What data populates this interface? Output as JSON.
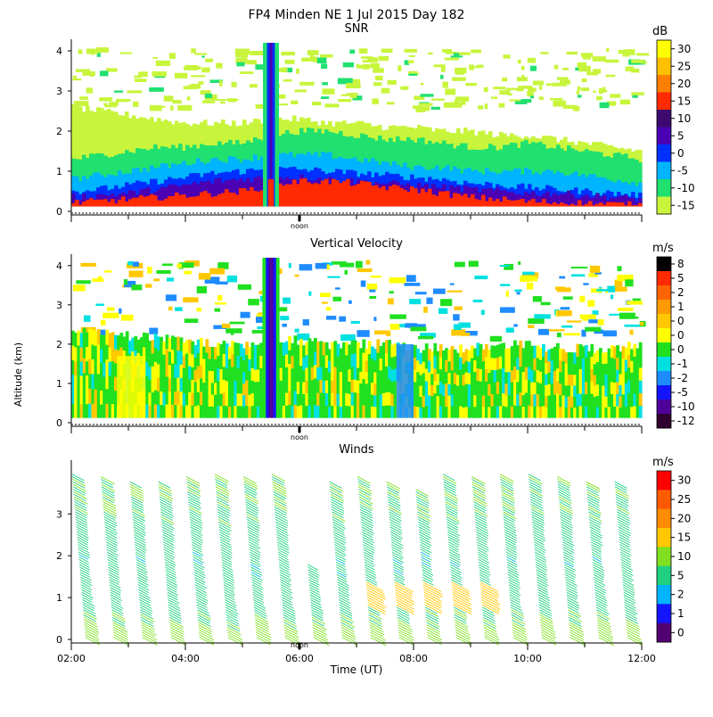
{
  "figure_title": "FP4 Minden NE   1 Jul 2015 Day 182",
  "shared": {
    "y_label": "Altitude (km)",
    "x_label": "Time (UT)",
    "x_ticks": [
      "02:00",
      "04:00",
      "06:00",
      "08:00",
      "10:00",
      "12:00"
    ],
    "noon_label": "noon",
    "noon_time": 6.0
  },
  "chart_data": [
    {
      "type": "heatmap",
      "title": "SNR",
      "units": "dB",
      "xlabel": "Time (UT)",
      "ylabel": "Altitude (km)",
      "xlim": [
        2,
        12
      ],
      "ylim": [
        0,
        4.2
      ],
      "y_ticks": [
        "0",
        "1",
        "2",
        "3",
        "4"
      ],
      "colorbar": {
        "labels": [
          "30",
          "25",
          "20",
          "15",
          "10",
          "5",
          "0",
          "-5",
          "-10",
          "-15"
        ],
        "colors": [
          "#ffff00",
          "#ffc000",
          "#ff8000",
          "#ff2a00",
          "#3c0a6e",
          "#4b00b4",
          "#0030ff",
          "#00b4ff",
          "#20e070",
          "#c8f53c"
        ]
      },
      "layers": [
        {
          "value_db": -15,
          "color": "#c8f53c",
          "top_km": [
            2.6,
            2.5,
            2.4,
            2.3,
            2.2,
            2.2,
            2.2,
            2.3,
            2.3,
            2.2,
            2.2,
            2.1,
            2.1,
            2.0,
            2.0,
            1.9,
            1.9,
            1.8,
            1.7,
            1.6,
            1.5
          ]
        },
        {
          "value_db": -10,
          "color": "#20e070",
          "top_km": [
            1.3,
            1.4,
            1.5,
            1.6,
            1.6,
            1.7,
            1.7,
            1.9,
            2.0,
            2.0,
            1.9,
            1.8,
            1.8,
            1.7,
            1.6,
            1.6,
            1.7,
            1.6,
            1.5,
            1.4,
            1.3
          ]
        },
        {
          "value_db": -5,
          "color": "#00b4ff",
          "top_km": [
            0.8,
            0.9,
            1.0,
            1.1,
            1.2,
            1.3,
            1.3,
            1.4,
            1.4,
            1.4,
            1.3,
            1.2,
            1.1,
            1.1,
            1.0,
            1.0,
            1.0,
            1.0,
            0.9,
            0.8,
            0.7
          ]
        },
        {
          "value_db": 0,
          "color": "#0030ff",
          "top_km": [
            0.5,
            0.55,
            0.65,
            0.75,
            0.85,
            0.95,
            1.0,
            1.05,
            1.05,
            1.0,
            0.95,
            0.9,
            0.85,
            0.8,
            0.7,
            0.65,
            0.6,
            0.55,
            0.5,
            0.45,
            0.4
          ]
        },
        {
          "value_db": 5,
          "color": "#4b00b4",
          "top_km": [
            0.35,
            0.4,
            0.45,
            0.55,
            0.65,
            0.75,
            0.8,
            0.85,
            0.85,
            0.8,
            0.75,
            0.7,
            0.65,
            0.6,
            0.55,
            0.5,
            0.45,
            0.45,
            0.4,
            0.35,
            0.3
          ]
        },
        {
          "value_db": 15,
          "color": "#ff2a00",
          "top_km": [
            0.22,
            0.25,
            0.3,
            0.35,
            0.4,
            0.45,
            0.5,
            0.65,
            0.75,
            0.75,
            0.7,
            0.6,
            0.55,
            0.45,
            0.35,
            0.3,
            0.25,
            0.22,
            0.2,
            0.18,
            0.15
          ]
        }
      ],
      "scattered_top_echo_km": [
        2.6,
        4.1
      ],
      "bright_column_time": 5.5
    },
    {
      "type": "heatmap",
      "title": "Vertical Velocity",
      "units": "m/s",
      "xlabel": "Time (UT)",
      "ylabel": "Altitude (km)",
      "xlim": [
        2,
        12
      ],
      "ylim": [
        0,
        4.2
      ],
      "y_ticks": [
        "0",
        "1",
        "2",
        "3",
        "4"
      ],
      "colorbar": {
        "labels": [
          "8",
          "5",
          "2",
          "1",
          "0",
          "0",
          "0",
          "-1",
          "-2",
          "-5",
          "-10",
          "-12"
        ],
        "colors": [
          "#000000",
          "#ff2a00",
          "#ff6400",
          "#ff9a00",
          "#ffc800",
          "#ffff00",
          "#20e020",
          "#00e0e0",
          "#1e8cff",
          "#1414ff",
          "#50009a",
          "#300030"
        ]
      },
      "top_km": [
        2.4,
        2.3,
        2.2,
        2.2,
        2.1,
        2.0,
        2.0,
        2.1,
        2.1,
        2.0,
        2.0,
        2.0,
        1.9,
        1.9,
        1.9,
        2.0,
        2.0,
        1.9,
        1.9,
        1.9,
        2.0
      ],
      "updraft_region": {
        "t_start": 2.8,
        "t_end": 3.3,
        "top_km": 1.7
      },
      "downdraft_column_time": 5.5,
      "negative_patch": {
        "t_start": 7.7,
        "t_end": 8.0,
        "top_km": 2.0
      }
    },
    {
      "type": "wind_barbs",
      "title": "Winds",
      "units": "m/s",
      "xlabel": "Time (UT)",
      "ylabel": "Altitude (km)",
      "xlim": [
        2,
        12
      ],
      "ylim": [
        0,
        4.2
      ],
      "y_ticks": [
        "0",
        "1",
        "2",
        "3"
      ],
      "colorbar": {
        "labels": [
          "30",
          "25",
          "20",
          "15",
          "10",
          "5",
          "2",
          "1",
          "0"
        ],
        "colors": [
          "#ff0000",
          "#ff5a00",
          "#ff8c00",
          "#ffc800",
          "#80e020",
          "#20d080",
          "#00b4ff",
          "#1414ff",
          "#500070"
        ]
      },
      "profile_times": [
        2.0,
        2.5,
        3.0,
        3.5,
        4.0,
        4.5,
        5.0,
        5.5,
        6.0,
        6.5,
        7.0,
        7.5,
        8.0,
        8.5,
        9.0,
        9.5,
        10.0,
        10.5,
        11.0,
        11.5
      ],
      "profile_tops_km": [
        4.0,
        3.9,
        3.8,
        3.8,
        3.9,
        4.0,
        3.9,
        4.0,
        1.8,
        3.8,
        3.9,
        3.8,
        3.6,
        4.0,
        3.9,
        4.0,
        4.0,
        3.9,
        3.8,
        3.8
      ],
      "speed_profile_mps": [
        {
          "alt_km": 0.2,
          "speed": 12
        },
        {
          "alt_km": 1.0,
          "speed": 7
        },
        {
          "alt_km": 2.0,
          "speed": 6
        },
        {
          "alt_km": 3.0,
          "speed": 9
        },
        {
          "alt_km": 4.0,
          "speed": 10
        }
      ],
      "jet_core": {
        "t_start": 6.7,
        "t_end": 9.3,
        "alt_km": [
          0.8,
          1.4
        ],
        "speed": 17
      }
    }
  ]
}
